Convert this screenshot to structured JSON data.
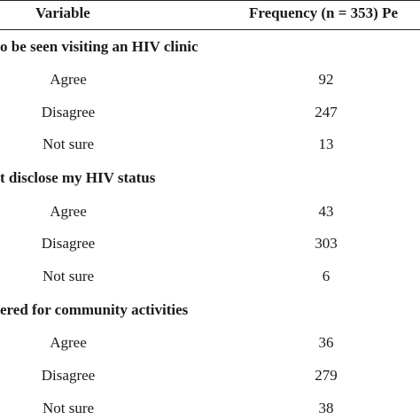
{
  "header": {
    "variable": "Variable",
    "frequency": "Frequency (n = 353) Pe"
  },
  "sections": [
    {
      "title": "o be seen visiting an HIV clinic",
      "rows": [
        {
          "label": "Agree",
          "frequency": "92"
        },
        {
          "label": "Disagree",
          "frequency": "247"
        },
        {
          "label": "Not sure",
          "frequency": "13"
        }
      ]
    },
    {
      "title": "t disclose my HIV status",
      "rows": [
        {
          "label": "Agree",
          "frequency": "43"
        },
        {
          "label": "Disagree",
          "frequency": "303"
        },
        {
          "label": "Not sure",
          "frequency": "6"
        }
      ]
    },
    {
      "title": "ered for community activities",
      "rows": [
        {
          "label": "Agree",
          "frequency": "36"
        },
        {
          "label": "Disagree",
          "frequency": "279"
        },
        {
          "label": "Not sure",
          "frequency": "38"
        }
      ]
    }
  ]
}
